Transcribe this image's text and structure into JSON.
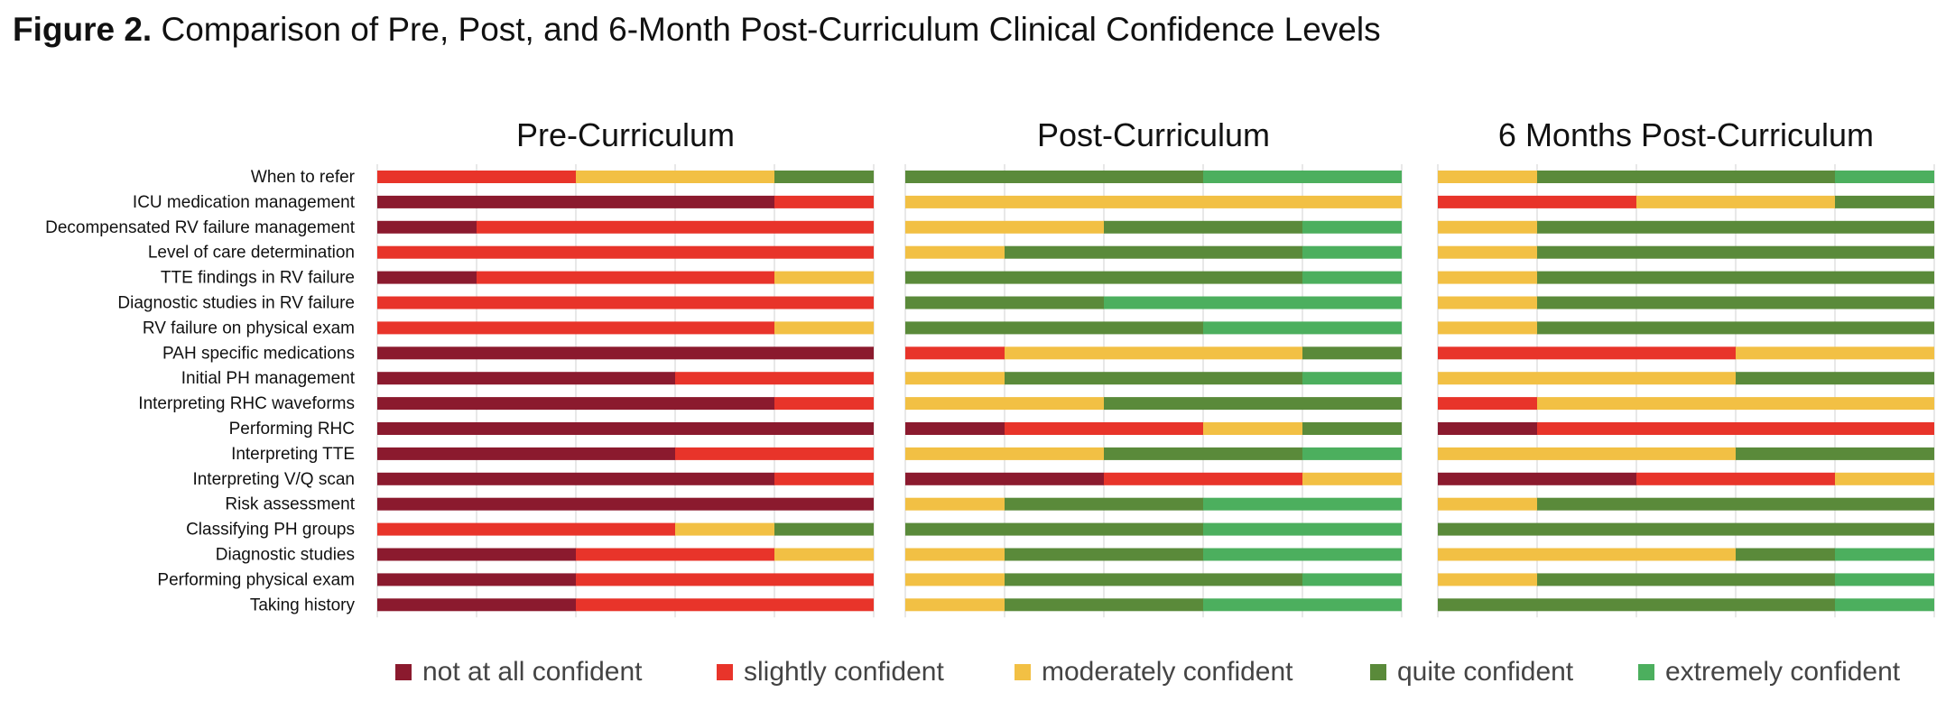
{
  "figure": {
    "label": "Figure 2.",
    "title": "Comparison of Pre, Post, and 6-Month Post-Curriculum Clinical Confidence Levels"
  },
  "colors": {
    "not_at_all": "#8B1A2E",
    "slightly": "#E8342A",
    "moderately": "#F2C044",
    "quite": "#5A8A3A",
    "extremely": "#4CAF5E",
    "grid": "#d0d0d0"
  },
  "legend": [
    {
      "key": "not_at_all",
      "label": "not at all confident"
    },
    {
      "key": "slightly",
      "label": "slightly confident"
    },
    {
      "key": "moderately",
      "label": "moderately confident"
    },
    {
      "key": "quite",
      "label": "quite confident"
    },
    {
      "key": "extremely",
      "label": "extremely confident"
    }
  ],
  "chart_data": {
    "type": "bar",
    "orientation": "horizontal",
    "stacked": true,
    "categories": [
      "When to refer",
      "ICU medication management",
      "Decompensated RV failure management",
      "Level of care determination",
      "TTE findings in RV failure",
      "Diagnostic studies in RV failure",
      "RV failure on physical exam",
      "PAH specific medications",
      "Initial PH management",
      "Interpreting RHC waveforms",
      "Performing RHC",
      "Interpreting TTE",
      "Interpreting V/Q scan",
      "Risk assessment",
      "Classifying PH groups",
      "Diagnostic studies",
      "Performing physical exam",
      "Taking history"
    ],
    "series_keys": [
      "not_at_all",
      "slightly",
      "moderately",
      "quite",
      "extremely"
    ],
    "xlim": [
      0,
      5
    ],
    "grid": true,
    "legend_position": "bottom",
    "panels": [
      {
        "title": "Pre-Curriculum",
        "values": [
          [
            0,
            2,
            2,
            1,
            0
          ],
          [
            4,
            1,
            0,
            0,
            0
          ],
          [
            1,
            4,
            0,
            0,
            0
          ],
          [
            0,
            5,
            0,
            0,
            0
          ],
          [
            1,
            3,
            1,
            0,
            0
          ],
          [
            0,
            5,
            0,
            0,
            0
          ],
          [
            0,
            4,
            1,
            0,
            0
          ],
          [
            5,
            0,
            0,
            0,
            0
          ],
          [
            3,
            2,
            0,
            0,
            0
          ],
          [
            4,
            1,
            0,
            0,
            0
          ],
          [
            5,
            0,
            0,
            0,
            0
          ],
          [
            3,
            2,
            0,
            0,
            0
          ],
          [
            4,
            1,
            0,
            0,
            0
          ],
          [
            5,
            0,
            0,
            0,
            0
          ],
          [
            0,
            3,
            1,
            1,
            0
          ],
          [
            2,
            2,
            1,
            0,
            0
          ],
          [
            2,
            3,
            0,
            0,
            0
          ],
          [
            2,
            3,
            0,
            0,
            0
          ]
        ]
      },
      {
        "title": "Post-Curriculum",
        "values": [
          [
            0,
            0,
            0,
            3,
            2
          ],
          [
            0,
            0,
            5,
            0,
            0
          ],
          [
            0,
            0,
            2,
            2,
            1
          ],
          [
            0,
            0,
            1,
            3,
            1
          ],
          [
            0,
            0,
            0,
            4,
            1
          ],
          [
            0,
            0,
            0,
            2,
            3
          ],
          [
            0,
            0,
            0,
            3,
            2
          ],
          [
            0,
            1,
            3,
            1,
            0
          ],
          [
            0,
            0,
            1,
            3,
            1
          ],
          [
            0,
            0,
            2,
            3,
            0
          ],
          [
            1,
            2,
            1,
            1,
            0
          ],
          [
            0,
            0,
            2,
            2,
            1
          ],
          [
            2,
            2,
            1,
            0,
            0
          ],
          [
            0,
            0,
            1,
            2,
            2
          ],
          [
            0,
            0,
            0,
            3,
            2
          ],
          [
            0,
            0,
            1,
            2,
            2
          ],
          [
            0,
            0,
            1,
            3,
            1
          ],
          [
            0,
            0,
            1,
            2,
            2
          ]
        ]
      },
      {
        "title": "6 Months Post-Curriculum",
        "values": [
          [
            0,
            0,
            1,
            3,
            1
          ],
          [
            0,
            2,
            2,
            1,
            0
          ],
          [
            0,
            0,
            1,
            4,
            0
          ],
          [
            0,
            0,
            1,
            4,
            0
          ],
          [
            0,
            0,
            1,
            4,
            0
          ],
          [
            0,
            0,
            1,
            4,
            0
          ],
          [
            0,
            0,
            1,
            4,
            0
          ],
          [
            0,
            3,
            2,
            0,
            0
          ],
          [
            0,
            0,
            3,
            2,
            0
          ],
          [
            0,
            1,
            4,
            0,
            0
          ],
          [
            1,
            4,
            0,
            0,
            0
          ],
          [
            0,
            0,
            3,
            2,
            0
          ],
          [
            2,
            2,
            1,
            0,
            0
          ],
          [
            0,
            0,
            1,
            4,
            0
          ],
          [
            0,
            0,
            0,
            5,
            0
          ],
          [
            0,
            0,
            3,
            1,
            1
          ],
          [
            0,
            0,
            1,
            3,
            1
          ],
          [
            0,
            0,
            0,
            4,
            1
          ]
        ]
      }
    ]
  }
}
